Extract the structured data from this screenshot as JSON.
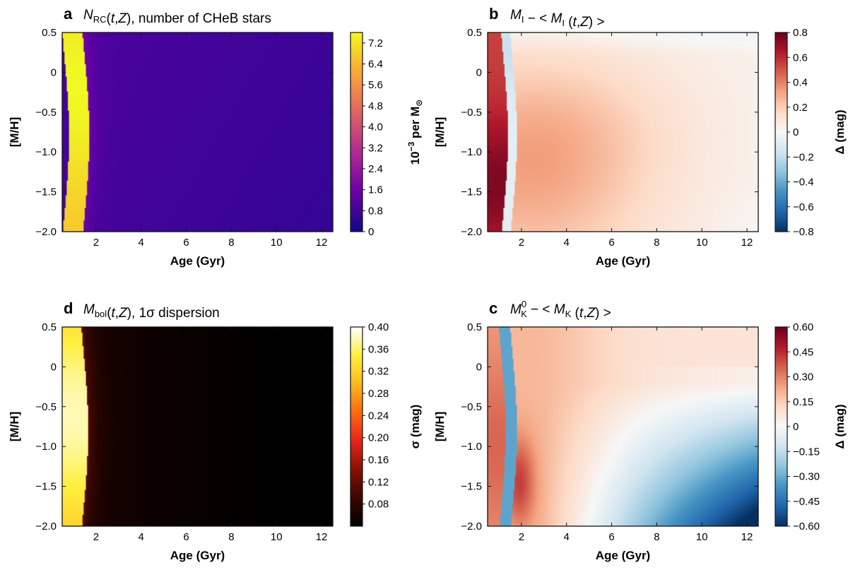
{
  "chart_data": [
    {
      "panel": "a",
      "type": "heatmap",
      "title": {
        "sym": "N",
        "sub": "RC",
        "args": "(t,Z)",
        "rest": ", number of CHeB stars"
      },
      "xlabel": "Age (Gyr)",
      "ylabel": "[M/H]",
      "xlim": [
        0.5,
        12.5
      ],
      "ylim": [
        -2.0,
        0.5
      ],
      "xticks": [
        "2",
        "4",
        "6",
        "8",
        "10",
        "12"
      ],
      "yticks": [
        "0.5",
        "0",
        "−0.5",
        "−1.0",
        "−1.5",
        "−2.0"
      ],
      "colorbar": {
        "label_pre": "10",
        "label_sup": "−3",
        "label_post": " per M",
        "label_sym": "⊙",
        "ticks": [
          "7.2",
          "6.4",
          "5.6",
          "4.8",
          "4.0",
          "3.2",
          "2.4",
          "1.6",
          "0.8",
          "0"
        ],
        "range": [
          0,
          7.6
        ],
        "colormap": "plasma",
        "colors": [
          "#0d0887",
          "#6a00a8",
          "#b12a90",
          "#e16462",
          "#fca636",
          "#f0f921"
        ]
      },
      "field": {
        "kind": "nrc",
        "background": 0.9,
        "peak": 7.6,
        "peak_age": 1.2
      }
    },
    {
      "panel": "b",
      "type": "heatmap",
      "title": {
        "sym": "M",
        "sub": "I",
        "rest": " − < ",
        "sym2": "M",
        "sub2": "I",
        "args": " (t,Z) >"
      },
      "xlabel": "Age (Gyr)",
      "ylabel": "[M/H]",
      "xlim": [
        0.5,
        12.5
      ],
      "ylim": [
        -2.0,
        0.5
      ],
      "xticks": [
        "2",
        "4",
        "6",
        "8",
        "10",
        "12"
      ],
      "yticks": [
        "0.5",
        "0",
        "−0.5",
        "−1.0",
        "−1.5",
        "−2.0"
      ],
      "colorbar": {
        "label_pre": "Δ (mag)",
        "ticks": [
          "0.8",
          "0.6",
          "0.4",
          "0.2",
          "0",
          "−0.2",
          "−0.4",
          "−0.6",
          "−0.8"
        ],
        "range": [
          -0.8,
          0.8
        ],
        "colormap": "RdBu_r",
        "colors": [
          "#053061",
          "#2166ac",
          "#4393c3",
          "#92c5de",
          "#d1e5f0",
          "#f7f7f7",
          "#fddbc7",
          "#f4a582",
          "#d6604d",
          "#b2182b",
          "#67001f"
        ]
      },
      "field": {
        "kind": "mi"
      }
    },
    {
      "panel": "d",
      "type": "heatmap",
      "title": {
        "sym": "M",
        "sub": "bol",
        "args": "(t,Z)",
        "rest": ", 1σ dispersion"
      },
      "xlabel": "Age (Gyr)",
      "ylabel": "[M/H]",
      "xlim": [
        0.5,
        12.5
      ],
      "ylim": [
        -2.0,
        0.5
      ],
      "xticks": [
        "2",
        "4",
        "6",
        "8",
        "10",
        "12"
      ],
      "yticks": [
        "0.5",
        "0",
        "−0.5",
        "−1.0",
        "−1.5",
        "−2.0"
      ],
      "colorbar": {
        "label_pre": "σ (mag)",
        "ticks": [
          "0.40",
          "0.36",
          "0.32",
          "0.28",
          "0.24",
          "0.20",
          "0.16",
          "0.12",
          "0.08"
        ],
        "range": [
          0.04,
          0.4
        ],
        "colormap": "hot",
        "colors": [
          "#000000",
          "#3a0600",
          "#8b1100",
          "#e6251a",
          "#ff6a12",
          "#ffb81c",
          "#ffef3f",
          "#ffffff"
        ]
      },
      "field": {
        "kind": "sigma"
      }
    },
    {
      "panel": "c",
      "type": "heatmap",
      "title": {
        "sym": "M",
        "sub": "K",
        "sup": "0",
        "rest": " − < ",
        "sym2": "M",
        "sub2": "K",
        "args": " (t,Z) >"
      },
      "xlabel": "Age (Gyr)",
      "ylabel": "[M/H]",
      "xlim": [
        0.5,
        12.5
      ],
      "ylim": [
        -2.0,
        0.5
      ],
      "xticks": [
        "2",
        "4",
        "6",
        "8",
        "10",
        "12"
      ],
      "yticks": [
        "0.5",
        "0",
        "−0.5",
        "−1.0",
        "−1.5",
        "−2.0"
      ],
      "colorbar": {
        "label_pre": "Δ (mag)",
        "ticks": [
          "0.60",
          "0.45",
          "0.30",
          "0.15",
          "0",
          "−0.15",
          "−0.30",
          "−0.45",
          "−0.60"
        ],
        "range": [
          -0.6,
          0.6
        ],
        "colormap": "RdBu_r",
        "colors": [
          "#053061",
          "#2166ac",
          "#4393c3",
          "#92c5de",
          "#d1e5f0",
          "#f7f7f7",
          "#fddbc7",
          "#f4a582",
          "#d6604d",
          "#b2182b",
          "#67001f"
        ]
      },
      "field": {
        "kind": "mk"
      }
    }
  ]
}
